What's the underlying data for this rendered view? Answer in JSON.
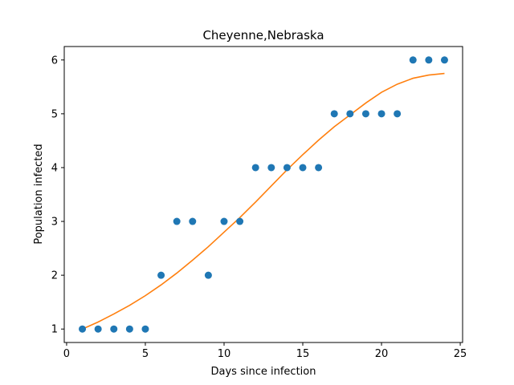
{
  "chart_data": {
    "type": "scatter",
    "title": "Cheyenne,Nebraska",
    "xlabel": "Days since infection",
    "ylabel": "Population infected",
    "xlim": [
      -0.15,
      25.15
    ],
    "ylim": [
      0.75,
      6.25
    ],
    "grid": false,
    "x_ticks": [
      0,
      5,
      10,
      15,
      20,
      25
    ],
    "y_ticks": [
      1,
      2,
      3,
      4,
      5,
      6
    ],
    "series": [
      {
        "kind": "scatter",
        "color": "#1f77b4",
        "x": [
          1,
          2,
          3,
          4,
          5,
          6,
          7,
          8,
          9,
          10,
          11,
          12,
          13,
          14,
          15,
          16,
          17,
          18,
          19,
          20,
          21,
          22,
          23,
          24
        ],
        "y": [
          1,
          1,
          1,
          1,
          1,
          2,
          3,
          3,
          2,
          3,
          3,
          4,
          4,
          4,
          4,
          4,
          5,
          5,
          5,
          5,
          5,
          6,
          6,
          6
        ]
      },
      {
        "kind": "line",
        "color": "#ff7f0e",
        "x": [
          1,
          2,
          3,
          4,
          5,
          6,
          7,
          8,
          9,
          10,
          11,
          12,
          13,
          14,
          15,
          16,
          17,
          18,
          19,
          20,
          21,
          22,
          23,
          24
        ],
        "y": [
          1.0,
          1.13,
          1.28,
          1.44,
          1.62,
          1.82,
          2.04,
          2.28,
          2.53,
          2.8,
          3.07,
          3.36,
          3.66,
          3.96,
          4.24,
          4.51,
          4.76,
          4.98,
          5.2,
          5.4,
          5.55,
          5.66,
          5.72,
          5.75
        ]
      }
    ]
  }
}
